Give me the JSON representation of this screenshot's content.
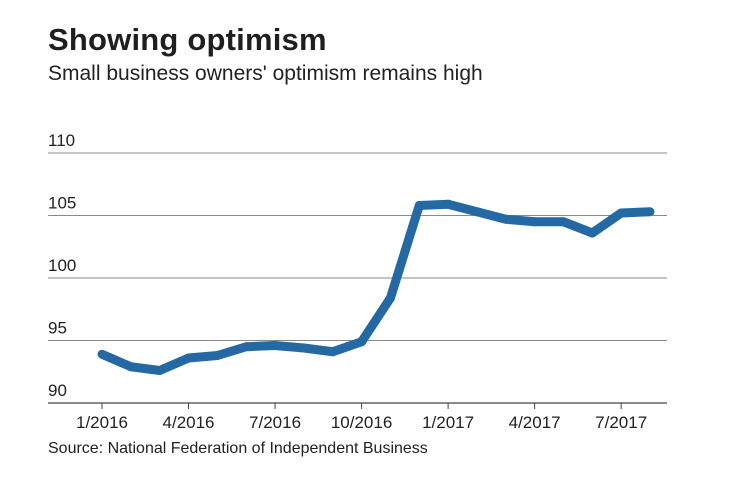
{
  "header": {
    "title": "Showing optimism",
    "subtitle": "Small business owners' optimism remains high"
  },
  "footer": {
    "source": "Source: National Federation of Independent Business"
  },
  "chart_data": {
    "type": "line",
    "title": "Showing optimism",
    "subtitle": "Small business owners' optimism remains high",
    "xlabel": "",
    "ylabel": "",
    "ylim": [
      90,
      110
    ],
    "yticks": [
      110,
      105,
      100,
      95,
      90
    ],
    "x": [
      "1/2016",
      "2/2016",
      "3/2016",
      "4/2016",
      "5/2016",
      "6/2016",
      "7/2016",
      "8/2016",
      "9/2016",
      "10/2016",
      "11/2016",
      "12/2016",
      "1/2017",
      "2/2017",
      "3/2017",
      "4/2017",
      "5/2017",
      "6/2017",
      "7/2017",
      "8/2017"
    ],
    "xtick_labels": [
      "1/2016",
      "4/2016",
      "7/2016",
      "10/2016",
      "1/2017",
      "4/2017",
      "7/2017"
    ],
    "grid": true,
    "legend": "none",
    "series": [
      {
        "values": [
          93.9,
          92.9,
          92.6,
          93.6,
          93.8,
          94.5,
          94.6,
          94.4,
          94.1,
          94.9,
          98.4,
          105.8,
          105.9,
          105.3,
          104.7,
          104.5,
          104.5,
          103.6,
          105.2,
          105.3
        ]
      }
    ],
    "colors": {
      "line": "#2469a4",
      "grid": "#8a8a8a",
      "axis": "#444444"
    }
  }
}
